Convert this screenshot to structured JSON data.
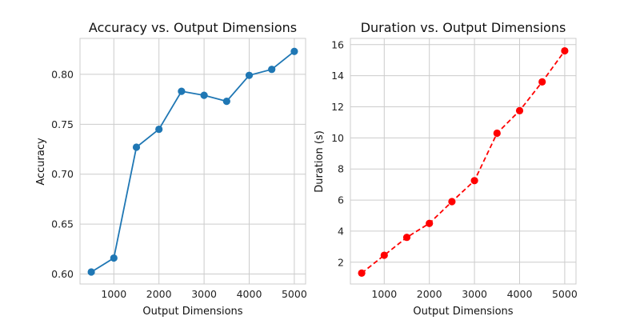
{
  "chart_data": [
    {
      "type": "line",
      "title": "Accuracy vs. Output Dimensions",
      "xlabel": "Output Dimensions",
      "ylabel": "Accuracy",
      "xlim": [
        250,
        5250
      ],
      "ylim": [
        0.59,
        0.836
      ],
      "grid": true,
      "xticks": [
        1000,
        2000,
        3000,
        4000,
        5000
      ],
      "yticks": [
        0.6,
        0.65,
        0.7,
        0.75,
        0.8
      ],
      "ytick_labels": [
        "0.60",
        "0.65",
        "0.70",
        "0.75",
        "0.80"
      ],
      "line_style": "solid",
      "color": "#1f77b4",
      "x": [
        500,
        1000,
        1500,
        2000,
        2500,
        3000,
        3500,
        4000,
        4500,
        5000
      ],
      "y": [
        0.602,
        0.616,
        0.727,
        0.745,
        0.783,
        0.779,
        0.773,
        0.799,
        0.805,
        0.823
      ]
    },
    {
      "type": "line",
      "title": "Duration vs. Output Dimensions",
      "xlabel": "Output Dimensions",
      "ylabel": "Duration (s)",
      "xlim": [
        250,
        5250
      ],
      "ylim": [
        0.6,
        16.4
      ],
      "grid": true,
      "xticks": [
        1000,
        2000,
        3000,
        4000,
        5000
      ],
      "yticks": [
        2,
        4,
        6,
        8,
        10,
        12,
        14,
        16
      ],
      "ytick_labels": [
        "2",
        "4",
        "6",
        "8",
        "10",
        "12",
        "14",
        "16"
      ],
      "line_style": "dashed",
      "color": "#ff0000",
      "x": [
        500,
        1000,
        1500,
        2000,
        2500,
        3000,
        3500,
        4000,
        4500,
        5000
      ],
      "y": [
        1.3,
        2.45,
        3.6,
        4.5,
        5.9,
        7.25,
        10.3,
        11.75,
        13.6,
        15.6
      ]
    }
  ]
}
